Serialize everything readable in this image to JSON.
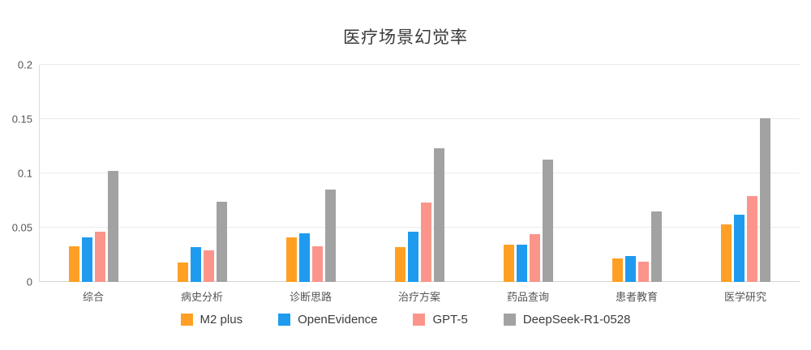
{
  "chart_data": {
    "type": "bar",
    "title": "医疗场景幻觉率",
    "categories": [
      "综合",
      "病史分析",
      "诊断思路",
      "治疗方案",
      "药品查询",
      "患者教育",
      "医学研究"
    ],
    "series": [
      {
        "name": "M2 plus",
        "color": "#FFA024",
        "values": [
          0.033,
          0.018,
          0.041,
          0.032,
          0.034,
          0.022,
          0.053
        ]
      },
      {
        "name": "OpenEvidence",
        "color": "#1E9BEF",
        "values": [
          0.041,
          0.032,
          0.045,
          0.046,
          0.034,
          0.024,
          0.062
        ]
      },
      {
        "name": "GPT-5",
        "color": "#FB958B",
        "values": [
          0.046,
          0.029,
          0.033,
          0.073,
          0.044,
          0.019,
          0.079
        ]
      },
      {
        "name": "DeepSeek-R1-0528",
        "color": "#A2A2A2",
        "values": [
          0.102,
          0.074,
          0.085,
          0.123,
          0.113,
          0.065,
          0.151
        ]
      }
    ],
    "xlabel": "",
    "ylabel": "",
    "ylim": [
      0,
      0.2
    ],
    "yticks": [
      0,
      0.05,
      0.1,
      0.15,
      0.2
    ],
    "grid": true,
    "legend_position": "bottom",
    "background_color": "#ffffff",
    "grid_color": "#ebebeb",
    "text_color": "#555555"
  }
}
